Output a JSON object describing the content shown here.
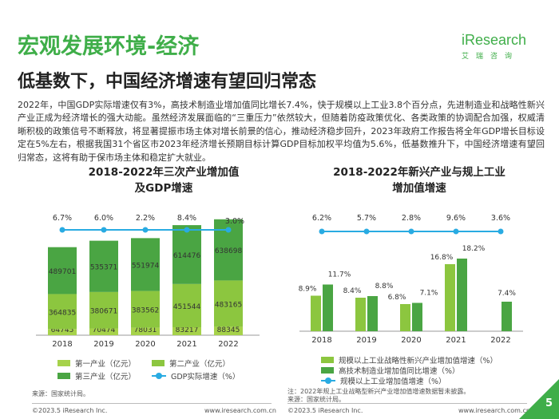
{
  "header": {
    "title": "宏观发展环境-经济",
    "subtitle": "低基数下，中国经济增速有望回归常态",
    "logo": "iResearch",
    "logo_cn": "艾瑞咨询"
  },
  "body_text": "2022年，中国GDP实际增速仅有3%，高技术制造业增加值同比增长7.4%，快于规模以上工业3.8个百分点，先进制造业和战略性新兴产业正成为经济增长的强大动能。虽然经济发展面临的“三重压力”依然较大，但随着防疫政策优化、各类政策的协调配合加强，权威清晰积极的政策信号不断释放，将显著提振市场主体对增长前景的信心，推动经济稳步回升，2023年政府工作报告将全年GDP增长目标设定在5%左右，根据我国31个省区市2023年经济增长预期目标计算GDP目标加权平均值为5.6%，低基数推升下，中国经济增速有望回归常态，这将有助于保市场主体和稳定扩大就业。",
  "colors": {
    "green_primary": "#3fae49",
    "first_industry": "#a6d24a",
    "second_industry": "#8cc63f",
    "third_industry": "#4aa543",
    "gdp_line": "#29abe2"
  },
  "chart_data": [
    {
      "type": "bar",
      "stacked": true,
      "title_line1": "2018-2022年三次产业增加值",
      "title_line2": "及GDP增速",
      "categories": [
        "2018",
        "2019",
        "2020",
        "2021",
        "2022"
      ],
      "series": [
        {
          "name": "第一产业（亿元）",
          "values": [
            64745,
            70474,
            78031,
            83217,
            88345
          ]
        },
        {
          "name": "第二产业（亿元）",
          "values": [
            364835,
            380671,
            383562,
            451544,
            483165
          ]
        },
        {
          "name": "第三产业（亿元）",
          "values": [
            489701,
            535371,
            551974,
            614476,
            638698
          ]
        }
      ],
      "line_series": {
        "name": "GDP实际增速（%）",
        "values": [
          6.7,
          6.0,
          2.2,
          8.4,
          3.0
        ],
        "labels": [
          "6.7%",
          "6.0%",
          "2.2%",
          "8.4%",
          "3.0%"
        ]
      },
      "value_labels": {
        "first": [
          "64745",
          "70474",
          "78031",
          "83217",
          "88345"
        ],
        "second": [
          "364835",
          "380671",
          "383562",
          "451544",
          "483165"
        ],
        "third": [
          "489701",
          "535371",
          "551974",
          "614476",
          "638698"
        ]
      },
      "ylim": [
        0,
        1250000
      ],
      "legend": [
        "第一产业（亿元）",
        "第二产业（亿元）",
        "第三产业（亿元）",
        "GDP实际增速（%）"
      ],
      "source": "来源：国家统计局。"
    },
    {
      "type": "bar",
      "title_line1": "2018-2022年新兴产业与规上工业",
      "title_line2": "增加值增速",
      "categories": [
        "2018",
        "2019",
        "2020",
        "2021",
        "2022"
      ],
      "series": [
        {
          "name": "规模以上工业战略性新兴产业增加值增速（%）",
          "values": [
            8.9,
            8.4,
            6.8,
            16.8,
            null
          ],
          "labels": [
            "8.9%",
            "8.4%",
            "6.8%",
            "16.8%",
            ""
          ]
        },
        {
          "name": "高技术制造业增加值同比增速（%）",
          "values": [
            11.7,
            8.8,
            7.1,
            18.2,
            7.4
          ],
          "labels": [
            "11.7%",
            "8.8%",
            "7.1%",
            "18.2%",
            "7.4%"
          ]
        }
      ],
      "line_series": {
        "name": "规模以上工业增加值增速（%）",
        "values": [
          6.2,
          5.7,
          2.8,
          9.6,
          3.6
        ],
        "labels": [
          "6.2%",
          "5.7%",
          "2.8%",
          "9.6%",
          "3.6%"
        ]
      },
      "ylim": [
        0,
        20
      ],
      "legend": [
        "规模以上工业战略性新兴产业增加值增速（%）",
        "高技术制造业增加值同比增速（%）",
        "规模以上工业增加值增速（%）"
      ],
      "note": "注：2022年规上工业战略型新兴产业增加值增速数据暂未披露。",
      "source": "来源：国家统计局。"
    }
  ],
  "footer": {
    "left_copyright": "©2023.5 iResearch Inc.",
    "left_url": "www.iresearch.com.cn",
    "right_copyright": "©2023.5 iResearch Inc.",
    "right_url": "www.iresearch.com.cn",
    "page_number": "5"
  }
}
